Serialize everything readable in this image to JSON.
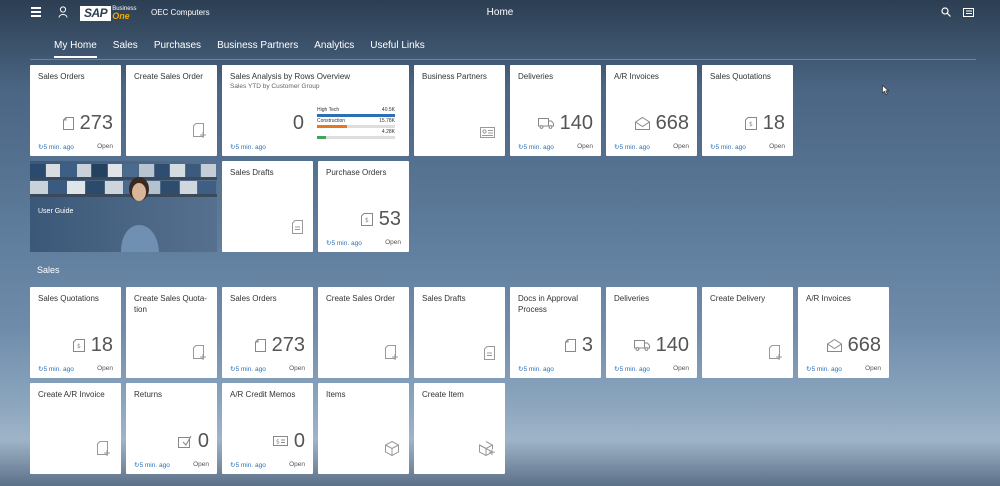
{
  "shell": {
    "company": "OEC Computers",
    "title": "Home",
    "logo_text": "SAP",
    "logo_business": "Business",
    "logo_one": "One"
  },
  "tabs": [
    {
      "label": "My Home",
      "active": true
    },
    {
      "label": "Sales"
    },
    {
      "label": "Purchases"
    },
    {
      "label": "Business Partners"
    },
    {
      "label": "Analytics"
    },
    {
      "label": "Useful Links"
    }
  ],
  "home": {
    "sales_orders": {
      "title": "Sales Orders",
      "count": "273",
      "time": "5 min. ago",
      "open": "Open"
    },
    "create_sales_order": {
      "title": "Create Sales Order"
    },
    "sales_analysis": {
      "title": "Sales Analysis by Rows Overview",
      "subtitle": "Sales YTD by Customer Group",
      "count": "0",
      "time": "5 min. ago",
      "bars": [
        {
          "label": "High Tech",
          "value": "40.5K",
          "fraction": 1.0,
          "color": "#2c6fb5"
        },
        {
          "label": "Construction",
          "value": "15.78K",
          "fraction": 0.39,
          "color": "#e87722"
        },
        {
          "label": "",
          "value": "4.28K",
          "fraction": 0.11,
          "color": "#3fa45b"
        }
      ]
    },
    "business_partners": {
      "title": "Business Partners"
    },
    "deliveries": {
      "title": "Deliveries",
      "count": "140",
      "time": "5 min. ago",
      "open": "Open"
    },
    "ar_invoices": {
      "title": "A/R Invoices",
      "count": "668",
      "time": "5 min. ago",
      "open": "Open"
    },
    "sales_quotations": {
      "title": "Sales Quotations",
      "count": "18",
      "time": "5 min. ago",
      "open": "Open"
    },
    "user_guide": {
      "title": "User Guide"
    },
    "sales_drafts": {
      "title": "Sales Drafts"
    },
    "purchase_orders": {
      "title": "Purchase Orders",
      "count": "53",
      "time": "5 min. ago",
      "open": "Open"
    }
  },
  "sales_section": {
    "title": "Sales",
    "sales_quotations": {
      "title": "Sales Quotations",
      "count": "18",
      "time": "5 min. ago",
      "open": "Open"
    },
    "create_sales_quotation": {
      "title": "Create Sales Quota-\ntion"
    },
    "sales_orders": {
      "title": "Sales Orders",
      "count": "273",
      "time": "5 min. ago",
      "open": "Open"
    },
    "create_sales_order": {
      "title": "Create Sales Order"
    },
    "sales_drafts": {
      "title": "Sales Drafts"
    },
    "docs_approval": {
      "title": "Docs in Approval Process",
      "count": "3",
      "time": "5 min. ago"
    },
    "deliveries": {
      "title": "Deliveries",
      "count": "140",
      "time": "5 min. ago",
      "open": "Open"
    },
    "create_delivery": {
      "title": "Create Delivery"
    },
    "ar_invoices": {
      "title": "A/R Invoices",
      "count": "668",
      "time": "5 min. ago",
      "open": "Open"
    },
    "create_ar_invoice": {
      "title": "Create A/R Invoice"
    },
    "returns": {
      "title": "Returns",
      "count": "0",
      "time": "5 min. ago",
      "open": "Open"
    },
    "ar_credit_memos": {
      "title": "A/R Credit Memos",
      "count": "0",
      "time": "5 min. ago",
      "open": "Open"
    },
    "items": {
      "title": "Items"
    },
    "create_item": {
      "title": "Create Item"
    }
  },
  "icons": {
    "menu": "menu-icon",
    "user": "user-icon",
    "search": "search-icon",
    "notifications": "notifications-icon",
    "document": "document-icon",
    "document_add": "document-add-icon",
    "truck": "truck-icon",
    "envelope": "envelope-icon",
    "quotation": "quotation-icon",
    "card": "business-card-icon",
    "cube": "cube-icon",
    "cube_add": "cube-add-icon",
    "return": "return-icon",
    "credit": "credit-memo-icon",
    "refresh": "refresh-icon"
  },
  "colors": {
    "accent": "#2c6fb5",
    "logo_one": "#f0ab00"
  }
}
